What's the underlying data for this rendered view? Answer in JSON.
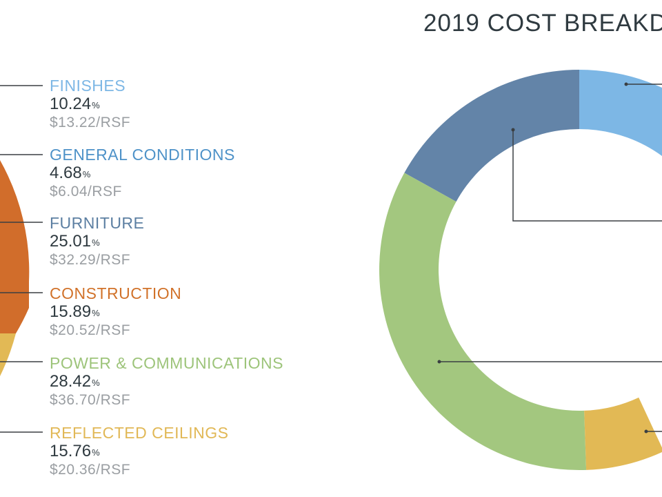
{
  "chart_data": {
    "type": "pie",
    "title": "2019 COST BREAKD",
    "categories": [
      "FINISHES",
      "GENERAL CONDITIONS",
      "FURNITURE",
      "CONSTRUCTION",
      "POWER & COMMUNICATIONS",
      "REFLECTED CEILINGS"
    ],
    "values": [
      10.24,
      4.68,
      25.01,
      15.89,
      28.42,
      15.76
    ],
    "items": [
      {
        "name": "FINISHES",
        "percent": "10.24",
        "cost": "$13.22/RSF",
        "color": "#7db7e5"
      },
      {
        "name": "GENERAL CONDITIONS",
        "percent": "4.68",
        "cost": "$6.04/RSF",
        "color": "#4e92c8"
      },
      {
        "name": "FURNITURE",
        "percent": "25.01",
        "cost": "$32.29/RSF",
        "color": "#5c7fa2"
      },
      {
        "name": "CONSTRUCTION",
        "percent": "15.89",
        "cost": "$20.52/RSF",
        "color": "#d1722a"
      },
      {
        "name": "POWER & COMMUNICATIONS",
        "percent": "28.42",
        "cost": "$36.70/RSF",
        "color": "#9dc47a"
      },
      {
        "name": "REFLECTED CEILINGS",
        "percent": "15.76",
        "cost": "$20.36/RSF",
        "color": "#e1b856"
      }
    ],
    "percent_symbol": "%"
  },
  "colors": {
    "ring": {
      "finishes": "#7db7e5",
      "general_conditions": "#1a86c8",
      "furniture": "#6384a8",
      "power_communications": "#a3c77f",
      "reflected_ceilings": "#e2b955",
      "left_construction": "#d16d2b",
      "left_ceilings": "#e2b955"
    },
    "leader": "#3a3f42"
  }
}
